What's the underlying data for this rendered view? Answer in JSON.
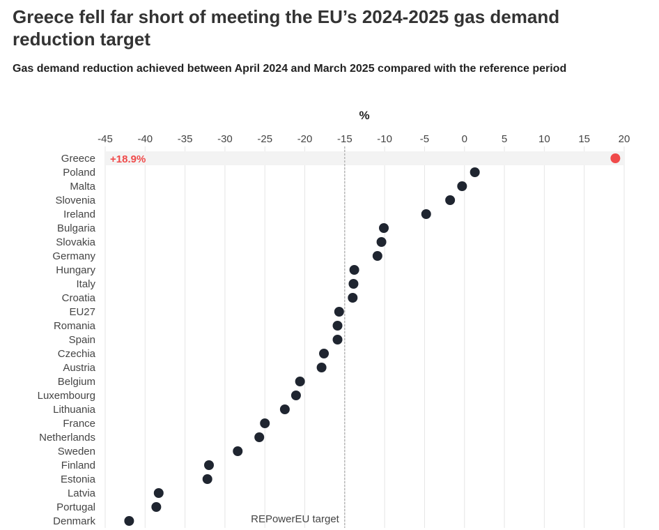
{
  "title": "Greece fell far short of meeting the EU’s 2024-2025 gas demand reduction target",
  "subtitle": "Gas demand reduction achieved between April 2024 and March 2025 compared with the reference period",
  "chart_data": {
    "type": "scatter",
    "axis_label": "%",
    "xlim": [
      -45,
      20
    ],
    "x_ticks": [
      -45,
      -40,
      -35,
      -30,
      -25,
      -20,
      -15,
      -10,
      -5,
      0,
      5,
      10,
      15,
      20
    ],
    "grid": true,
    "categories": [
      "Greece",
      "Poland",
      "Malta",
      "Slovenia",
      "Ireland",
      "Bulgaria",
      "Slovakia",
      "Germany",
      "Hungary",
      "Italy",
      "Croatia",
      "EU27",
      "Romania",
      "Spain",
      "Czechia",
      "Austria",
      "Belgium",
      "Luxembourg",
      "Lithuania",
      "France",
      "Netherlands",
      "Sweden",
      "Finland",
      "Estonia",
      "Latvia",
      "Portugal",
      "Denmark"
    ],
    "values": [
      18.9,
      1.3,
      -0.3,
      -1.8,
      -4.8,
      -10.1,
      -10.4,
      -10.9,
      -13.8,
      -13.9,
      -14.0,
      -15.7,
      -15.9,
      -15.9,
      -17.6,
      -17.9,
      -20.6,
      -21.1,
      -22.5,
      -25.0,
      -25.7,
      -28.4,
      -32.0,
      -32.2,
      -38.3,
      -38.6,
      -42.0
    ],
    "highlight": {
      "category": "Greece",
      "label": "+18.9%",
      "color": "#f04a4a"
    },
    "point_color": "#1f2530",
    "target": {
      "value": -15,
      "label": "REPowerEU target"
    }
  }
}
